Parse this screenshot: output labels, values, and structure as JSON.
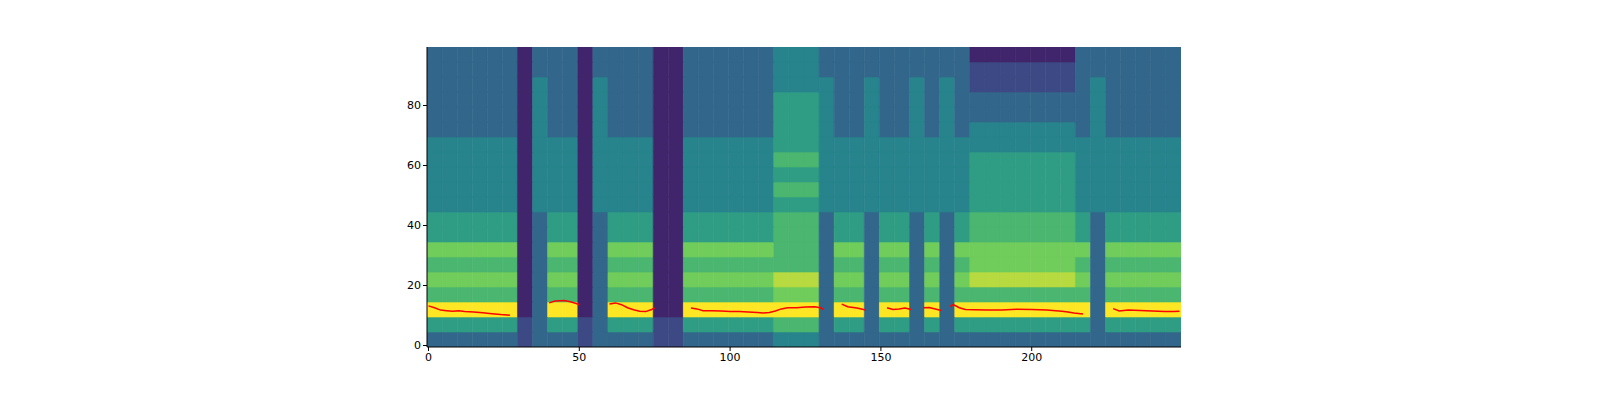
{
  "chart_data": {
    "type": "heatmap",
    "xlim": [
      -0.5,
      249.5
    ],
    "xticks": [
      0,
      50,
      100,
      150,
      200
    ],
    "ylim": [
      -0.5,
      99.5
    ],
    "yticks": [
      0,
      20,
      40,
      60,
      80
    ],
    "heatmap": {
      "x_edges": [
        -0.5,
        4.5,
        9.5,
        14.5,
        19.5,
        24.5,
        29.5,
        34.5,
        39.5,
        44.5,
        49.5,
        54.5,
        59.5,
        64.5,
        69.5,
        74.5,
        79.5,
        84.5,
        89.5,
        94.5,
        99.5,
        104.5,
        109.5,
        114.5,
        119.5,
        124.5,
        129.5,
        134.5,
        139.5,
        144.5,
        149.5,
        154.5,
        159.5,
        164.5,
        169.5,
        174.5,
        179.5,
        184.5,
        189.5,
        194.5,
        199.5,
        204.5,
        209.5,
        214.5,
        219.5,
        224.5,
        229.5,
        234.5,
        239.5,
        244.5,
        249.5
      ],
      "y_edges": [
        -0.5,
        4.5,
        9.5,
        14.5,
        19.5,
        24.5,
        29.5,
        34.5,
        39.5,
        44.5,
        49.5,
        54.5,
        59.5,
        64.5,
        69.5,
        74.5,
        79.5,
        84.5,
        89.5,
        94.5,
        99.5
      ],
      "cells_range": [
        0,
        9
      ],
      "cells": [
        [
          3,
          3,
          3,
          3,
          3,
          3,
          2,
          3,
          3,
          3,
          2,
          3,
          3,
          3,
          3,
          2,
          2,
          3,
          3,
          3,
          3,
          3,
          3,
          4,
          4,
          4,
          3,
          3,
          3,
          3,
          3,
          3,
          3,
          3,
          3,
          3,
          3,
          3,
          3,
          3,
          3,
          3,
          3,
          3,
          3,
          3,
          3,
          3,
          3,
          3
        ],
        [
          5,
          5,
          5,
          5,
          5,
          5,
          2,
          3,
          5,
          5,
          2,
          3,
          5,
          5,
          5,
          2,
          2,
          5,
          5,
          5,
          5,
          5,
          5,
          6,
          6,
          6,
          3,
          5,
          5,
          3,
          5,
          5,
          3,
          5,
          3,
          5,
          5,
          5,
          5,
          5,
          5,
          5,
          5,
          5,
          3,
          5,
          5,
          5,
          5,
          5
        ],
        [
          9,
          9,
          9,
          9,
          9,
          9,
          1,
          3,
          9,
          9,
          1,
          3,
          9,
          9,
          9,
          1,
          1,
          9,
          9,
          9,
          9,
          9,
          9,
          9,
          9,
          9,
          3,
          9,
          9,
          3,
          9,
          9,
          3,
          9,
          3,
          9,
          9,
          9,
          9,
          9,
          9,
          9,
          9,
          9,
          3,
          9,
          9,
          9,
          9,
          9
        ],
        [
          6,
          6,
          6,
          6,
          6,
          6,
          1,
          3,
          6,
          6,
          1,
          3,
          6,
          6,
          6,
          1,
          1,
          6,
          6,
          6,
          6,
          6,
          6,
          7,
          7,
          7,
          3,
          6,
          6,
          3,
          6,
          6,
          3,
          6,
          3,
          6,
          6,
          6,
          6,
          6,
          6,
          6,
          6,
          6,
          3,
          6,
          6,
          6,
          6,
          6
        ],
        [
          7,
          7,
          7,
          7,
          7,
          7,
          1,
          3,
          7,
          7,
          1,
          3,
          7,
          7,
          7,
          1,
          1,
          7,
          7,
          7,
          7,
          7,
          7,
          8,
          8,
          8,
          3,
          7,
          7,
          3,
          7,
          7,
          3,
          7,
          3,
          7,
          8,
          8,
          8,
          8,
          8,
          8,
          8,
          7,
          3,
          7,
          7,
          7,
          7,
          7
        ],
        [
          6,
          6,
          6,
          6,
          6,
          6,
          1,
          3,
          6,
          6,
          1,
          3,
          6,
          6,
          6,
          1,
          1,
          6,
          6,
          6,
          6,
          6,
          6,
          6,
          6,
          6,
          3,
          6,
          6,
          3,
          6,
          6,
          3,
          6,
          3,
          6,
          7,
          7,
          7,
          7,
          7,
          7,
          7,
          6,
          3,
          6,
          6,
          6,
          6,
          6
        ],
        [
          7,
          7,
          7,
          7,
          7,
          7,
          1,
          3,
          7,
          7,
          1,
          3,
          7,
          7,
          7,
          1,
          1,
          7,
          7,
          7,
          7,
          7,
          7,
          6,
          6,
          6,
          3,
          7,
          7,
          3,
          7,
          7,
          3,
          7,
          3,
          7,
          7,
          7,
          7,
          7,
          7,
          7,
          7,
          7,
          3,
          7,
          7,
          7,
          7,
          7
        ],
        [
          5,
          5,
          5,
          5,
          5,
          5,
          1,
          3,
          5,
          5,
          1,
          3,
          5,
          5,
          5,
          1,
          1,
          5,
          5,
          5,
          5,
          5,
          5,
          6,
          6,
          6,
          3,
          5,
          5,
          3,
          5,
          5,
          3,
          5,
          3,
          5,
          6,
          6,
          6,
          6,
          6,
          6,
          6,
          5,
          3,
          5,
          5,
          5,
          5,
          5
        ],
        [
          5,
          5,
          5,
          5,
          5,
          5,
          1,
          3,
          5,
          5,
          1,
          3,
          5,
          5,
          5,
          1,
          1,
          5,
          5,
          5,
          5,
          5,
          5,
          6,
          6,
          6,
          3,
          5,
          5,
          3,
          5,
          5,
          3,
          5,
          3,
          5,
          6,
          6,
          6,
          6,
          6,
          6,
          6,
          5,
          3,
          5,
          5,
          5,
          5,
          5
        ],
        [
          4,
          4,
          4,
          4,
          4,
          4,
          1,
          4,
          4,
          4,
          1,
          4,
          4,
          4,
          4,
          1,
          1,
          4,
          4,
          4,
          4,
          4,
          4,
          5,
          5,
          5,
          4,
          4,
          4,
          4,
          4,
          4,
          4,
          4,
          4,
          4,
          5,
          5,
          5,
          5,
          5,
          5,
          5,
          4,
          4,
          4,
          4,
          4,
          4,
          4
        ],
        [
          4,
          4,
          4,
          4,
          4,
          4,
          1,
          4,
          4,
          4,
          1,
          4,
          4,
          4,
          4,
          1,
          1,
          4,
          4,
          4,
          4,
          4,
          4,
          6,
          6,
          6,
          4,
          4,
          4,
          4,
          4,
          4,
          4,
          4,
          4,
          4,
          5,
          5,
          5,
          5,
          5,
          5,
          5,
          4,
          4,
          4,
          4,
          4,
          4,
          4
        ],
        [
          4,
          4,
          4,
          4,
          4,
          4,
          1,
          4,
          4,
          4,
          1,
          4,
          4,
          4,
          4,
          1,
          1,
          4,
          4,
          4,
          4,
          4,
          4,
          5,
          5,
          5,
          4,
          4,
          4,
          4,
          4,
          4,
          4,
          4,
          4,
          4,
          5,
          5,
          5,
          5,
          5,
          5,
          5,
          4,
          4,
          4,
          4,
          4,
          4,
          4
        ],
        [
          4,
          4,
          4,
          4,
          4,
          4,
          1,
          4,
          4,
          4,
          1,
          4,
          4,
          4,
          4,
          1,
          1,
          4,
          4,
          4,
          4,
          4,
          4,
          6,
          6,
          6,
          4,
          4,
          4,
          4,
          4,
          4,
          4,
          4,
          4,
          4,
          5,
          5,
          5,
          5,
          5,
          5,
          5,
          4,
          4,
          4,
          4,
          4,
          4,
          4
        ],
        [
          4,
          4,
          4,
          4,
          4,
          4,
          1,
          4,
          4,
          4,
          1,
          4,
          4,
          4,
          4,
          1,
          1,
          4,
          4,
          4,
          4,
          4,
          4,
          5,
          5,
          5,
          4,
          4,
          4,
          4,
          4,
          4,
          4,
          4,
          4,
          4,
          4,
          4,
          4,
          4,
          4,
          4,
          4,
          4,
          4,
          4,
          4,
          4,
          4,
          4
        ],
        [
          3,
          3,
          3,
          3,
          3,
          3,
          1,
          4,
          3,
          3,
          1,
          4,
          3,
          3,
          3,
          1,
          1,
          3,
          3,
          3,
          3,
          3,
          3,
          5,
          5,
          5,
          4,
          3,
          3,
          4,
          3,
          3,
          4,
          3,
          4,
          3,
          4,
          4,
          4,
          4,
          4,
          4,
          4,
          3,
          4,
          3,
          3,
          3,
          3,
          3
        ],
        [
          3,
          3,
          3,
          3,
          3,
          3,
          1,
          4,
          3,
          3,
          1,
          4,
          3,
          3,
          3,
          1,
          1,
          3,
          3,
          3,
          3,
          3,
          3,
          5,
          5,
          5,
          4,
          3,
          3,
          4,
          3,
          3,
          4,
          3,
          4,
          3,
          3,
          3,
          3,
          3,
          3,
          3,
          3,
          3,
          4,
          3,
          3,
          3,
          3,
          3
        ],
        [
          3,
          3,
          3,
          3,
          3,
          3,
          1,
          4,
          3,
          3,
          1,
          4,
          3,
          3,
          3,
          1,
          1,
          3,
          3,
          3,
          3,
          3,
          3,
          5,
          5,
          5,
          4,
          3,
          3,
          4,
          3,
          3,
          4,
          3,
          4,
          3,
          3,
          3,
          3,
          3,
          3,
          3,
          3,
          3,
          4,
          3,
          3,
          3,
          3,
          3
        ],
        [
          3,
          3,
          3,
          3,
          3,
          3,
          1,
          4,
          3,
          3,
          1,
          4,
          3,
          3,
          3,
          1,
          1,
          3,
          3,
          3,
          3,
          3,
          3,
          4,
          4,
          4,
          4,
          3,
          3,
          4,
          3,
          3,
          4,
          3,
          4,
          3,
          2,
          2,
          2,
          2,
          2,
          2,
          2,
          3,
          4,
          3,
          3,
          3,
          3,
          3
        ],
        [
          3,
          3,
          3,
          3,
          3,
          3,
          1,
          3,
          3,
          3,
          1,
          3,
          3,
          3,
          3,
          1,
          1,
          3,
          3,
          3,
          3,
          3,
          3,
          4,
          4,
          4,
          3,
          3,
          3,
          3,
          3,
          3,
          3,
          3,
          3,
          3,
          2,
          2,
          2,
          2,
          2,
          2,
          2,
          3,
          3,
          3,
          3,
          3,
          3,
          3
        ],
        [
          3,
          3,
          3,
          3,
          3,
          3,
          1,
          3,
          3,
          3,
          1,
          3,
          3,
          3,
          3,
          1,
          1,
          3,
          3,
          3,
          3,
          3,
          3,
          4,
          4,
          4,
          3,
          3,
          3,
          3,
          3,
          3,
          3,
          3,
          3,
          3,
          1,
          1,
          1,
          1,
          1,
          1,
          1,
          3,
          3,
          3,
          3,
          3,
          3,
          3
        ]
      ]
    },
    "line": {
      "color": "#ff0000",
      "x": [
        0,
        2,
        4,
        6,
        8,
        10,
        12,
        15,
        18,
        21,
        24,
        27,
        30,
        40,
        42,
        45,
        47,
        49,
        50,
        55,
        60,
        62,
        64,
        66,
        68,
        70,
        72,
        74,
        75,
        80,
        87,
        89,
        91,
        94,
        97,
        100,
        103,
        106,
        109,
        111,
        113,
        115,
        117,
        119,
        122,
        125,
        128,
        130,
        131,
        134,
        137,
        139,
        142,
        145,
        148,
        152,
        154,
        156,
        158,
        160,
        162,
        164,
        166,
        168,
        170,
        171.5,
        173,
        174,
        176,
        178,
        181,
        185,
        190,
        195,
        200,
        205,
        210,
        212,
        214,
        217,
        222,
        227,
        229,
        232,
        236,
        240,
        244,
        247,
        249
      ],
      "values": [
        13.2,
        12.6,
        11.8,
        11.6,
        11.4,
        11.6,
        11.3,
        11.2,
        10.9,
        10.6,
        10.3,
        10.1,
        null,
        14.2,
        14.8,
        15.0,
        14.6,
        14.0,
        13.6,
        null,
        13.8,
        14.2,
        13.6,
        12.6,
        11.9,
        11.4,
        11.3,
        12.0,
        12.5,
        null,
        12.5,
        12.2,
        11.6,
        11.6,
        11.5,
        11.3,
        11.3,
        11.2,
        11.0,
        10.8,
        11.0,
        11.5,
        12.2,
        12.6,
        12.6,
        12.8,
        12.9,
        12.6,
        12.0,
        null,
        13.8,
        12.9,
        12.5,
        11.8,
        null,
        12.6,
        12.0,
        12.2,
        12.5,
        12.0,
        null,
        12.6,
        12.7,
        12.2,
        11.7,
        null,
        13.0,
        13.6,
        12.6,
        12.0,
        11.9,
        11.8,
        11.8,
        12.1,
        12.0,
        11.8,
        11.4,
        11.2,
        10.8,
        10.5,
        null,
        12.3,
        11.5,
        11.8,
        11.7,
        11.5,
        11.3,
        11.3,
        11.4
      ]
    }
  }
}
